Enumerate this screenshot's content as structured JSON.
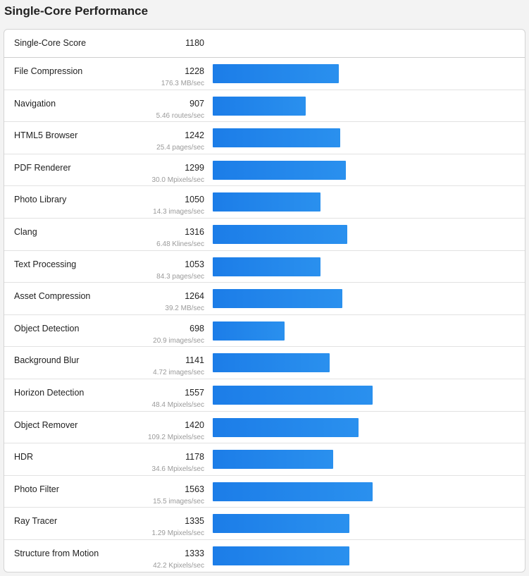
{
  "page_title": "Single-Core Performance",
  "overall": {
    "name": "Single-Core Score",
    "score": "1180"
  },
  "colors": {
    "bar": "#1c7de8",
    "bar_end": "#2a90ee"
  },
  "chart_data": {
    "type": "bar",
    "orientation": "horizontal",
    "title": "Single-Core Performance",
    "bar_scale_max": 1600,
    "categories": [
      "File Compression",
      "Navigation",
      "HTML5 Browser",
      "PDF Renderer",
      "Photo Library",
      "Clang",
      "Text Processing",
      "Asset Compression",
      "Object Detection",
      "Background Blur",
      "Horizon Detection",
      "Object Remover",
      "HDR",
      "Photo Filter",
      "Ray Tracer",
      "Structure from Motion"
    ],
    "values": [
      1228,
      907,
      1242,
      1299,
      1050,
      1316,
      1053,
      1264,
      698,
      1141,
      1557,
      1420,
      1178,
      1563,
      1335,
      1333
    ],
    "rates": [
      "176.3 MB/sec",
      "5.46 routes/sec",
      "25.4 pages/sec",
      "30.0 Mpixels/sec",
      "14.3 images/sec",
      "6.48 Klines/sec",
      "84.3 pages/sec",
      "39.2 MB/sec",
      "20.9 images/sec",
      "4.72 images/sec",
      "48.4 Mpixels/sec",
      "109.2 Mpixels/sec",
      "34.6 Mpixels/sec",
      "15.5 images/sec",
      "1.29 Mpixels/sec",
      "42.2 Kpixels/sec"
    ]
  }
}
